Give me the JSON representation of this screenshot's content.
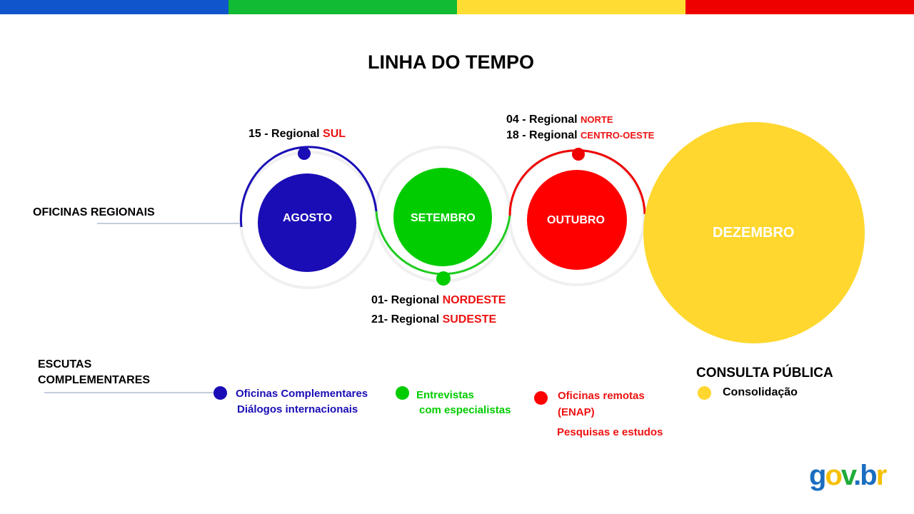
{
  "colors": {
    "blue": "#1a0db5",
    "green": "#00cc00",
    "red": "#ff0000",
    "yellow": "#ffd72e",
    "stripe_blue": "#1155cc",
    "stripe_green": "#11bb33",
    "stripe_yellow": "#ffdd33",
    "stripe_red": "#ee0000"
  },
  "title": "LINHA DO TEMPO",
  "sections": {
    "oficinas": "OFICINAS REGIONAIS",
    "escutas_1": "ESCUTAS",
    "escutas_2": "COMPLEMENTARES",
    "consulta": "CONSULTA PÚBLICA"
  },
  "months": [
    "AGOSTO",
    "SETEMBRO",
    "OUTUBRO",
    "DEZEMBRO"
  ],
  "events": {
    "agosto": {
      "prefix": "15 - Regional ",
      "region": "SUL"
    },
    "setembro": [
      {
        "prefix": "01- Regional ",
        "region": "NORDESTE"
      },
      {
        "prefix": "21- Regional ",
        "region": "SUDESTE"
      }
    ],
    "outubro": [
      {
        "prefix": "04 - Regional ",
        "region": "NORTE"
      },
      {
        "prefix": "18 - Regional ",
        "region": "CENTRO-OESTE"
      }
    ]
  },
  "legend": {
    "blue": [
      "Oficinas Complementares",
      "Diálogos internacionais"
    ],
    "green": [
      "Entrevistas",
      "com especialistas"
    ],
    "red": [
      "Oficinas remotas",
      "(ENAP)",
      "Pesquisas e estudos"
    ],
    "yellow": "Consolidação"
  },
  "logo": "gov.br"
}
